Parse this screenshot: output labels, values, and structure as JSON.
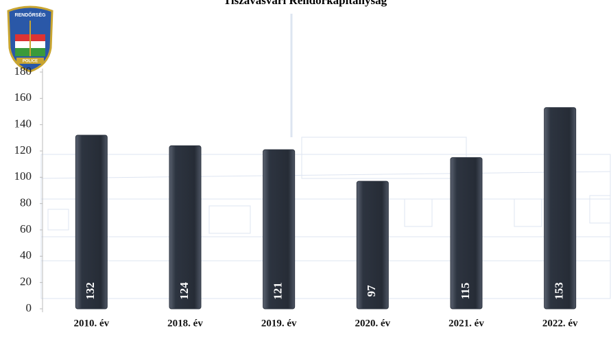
{
  "logo": {
    "top": "RENDŐRSÉG",
    "bottom": "POLICE"
  },
  "chart_data": {
    "type": "bar",
    "title": "Tiszavasvári Rendőrkapitányság",
    "categories": [
      "2010. év",
      "2018. év",
      "2019. év",
      "2020. év",
      "2021. év",
      "2022. év"
    ],
    "values": [
      132,
      124,
      121,
      97,
      115,
      153
    ],
    "color": "#2d3440",
    "ylim": [
      0,
      180
    ],
    "yticks": [
      0,
      20,
      40,
      60,
      80,
      100,
      120,
      140,
      160,
      180
    ]
  }
}
